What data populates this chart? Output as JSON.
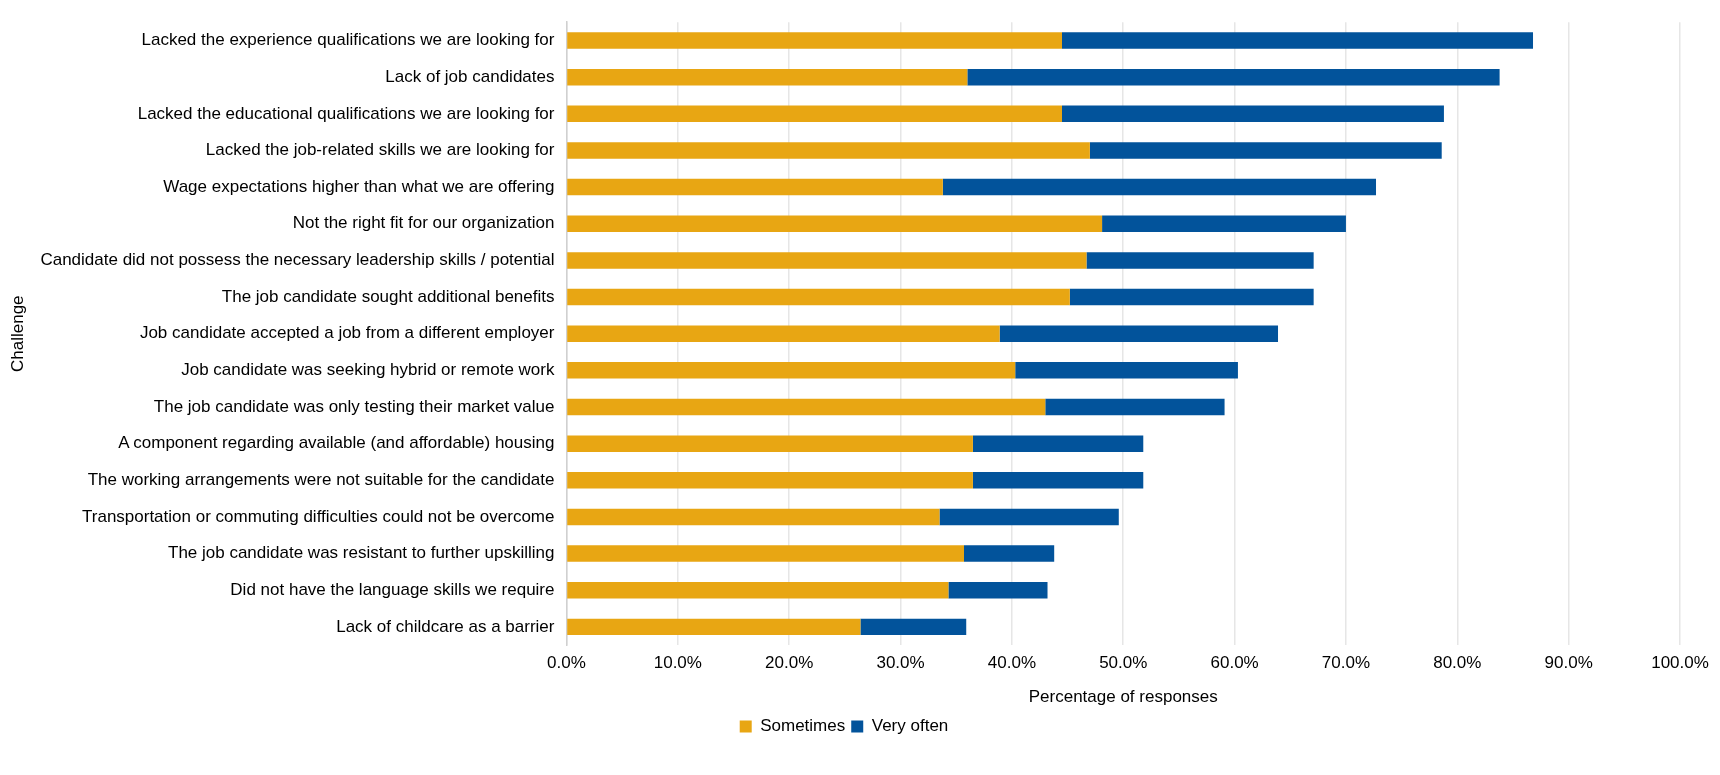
{
  "chart_data": {
    "type": "bar",
    "orientation": "horizontal",
    "stacked": true,
    "xlabel": "Percentage of responses",
    "ylabel": "Challenge",
    "categories": [
      "Lacked the experience qualifications we are looking for",
      "Lack of job candidates",
      "Lacked the educational qualifications we are looking for",
      "Lacked the job-related skills we are looking for",
      "Wage expectations higher than what we are offering",
      "Not the right fit for our organization",
      "Candidate did not possess the necessary leadership skills / potential",
      "The job candidate sought additional benefits",
      "Job candidate accepted a job from a different employer",
      "Job candidate was seeking hybrid or remote work",
      "The job candidate was only testing their market value",
      "A component regarding available (and affordable) housing",
      "The working arrangements were not suitable for the candidate",
      "Transportation or commuting difficulties could not be overcome",
      "The job candidate was resistant to further upskilling",
      "Did not have the language skills we require",
      "Lack of childcare as a barrier"
    ],
    "series": [
      {
        "name": "Sometimes",
        "color": "#e8a613",
        "values": [
          44.5,
          36.0,
          44.5,
          47.0,
          33.8,
          48.1,
          46.7,
          45.2,
          38.9,
          40.3,
          43.0,
          36.5,
          36.5,
          33.5,
          35.7,
          34.3,
          26.4
        ]
      },
      {
        "name": "Very often",
        "color": "#02539b",
        "values": [
          42.3,
          47.8,
          34.3,
          31.6,
          38.9,
          21.9,
          20.4,
          21.9,
          25.0,
          20.0,
          16.1,
          15.3,
          15.3,
          16.1,
          8.1,
          8.9,
          9.5
        ]
      }
    ],
    "xlim": [
      0,
      100
    ],
    "xticks": [
      {
        "value": 0,
        "label": "0.0%"
      },
      {
        "value": 10,
        "label": "10.0%"
      },
      {
        "value": 20,
        "label": "20.0%"
      },
      {
        "value": 30,
        "label": "30.0%"
      },
      {
        "value": 40,
        "label": "40.0%"
      },
      {
        "value": 50,
        "label": "50.0%"
      },
      {
        "value": 60,
        "label": "60.0%"
      },
      {
        "value": 70,
        "label": "70.0%"
      },
      {
        "value": 80,
        "label": "80.0%"
      },
      {
        "value": 90,
        "label": "90.0%"
      },
      {
        "value": 100,
        "label": "100.0%"
      }
    ],
    "grid": "x",
    "legend": "bottom"
  }
}
